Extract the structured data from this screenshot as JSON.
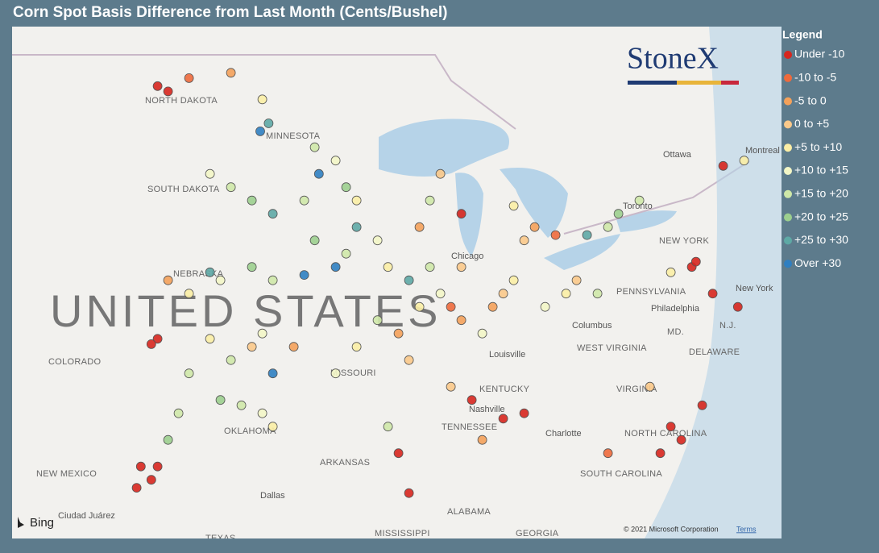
{
  "title": "Corn Spot Basis Difference from Last Month (Cents/Bushel)",
  "logo": "StoneX",
  "legend": {
    "title": "Legend",
    "items": [
      {
        "label": "Under -10",
        "color": "#d7261e"
      },
      {
        "label": "-10 to -5",
        "color": "#ee6a3c"
      },
      {
        "label": "-5 to 0",
        "color": "#f4a15a"
      },
      {
        "label": "0 to +5",
        "color": "#fbc98a"
      },
      {
        "label": "+5 to +10",
        "color": "#fbeea5"
      },
      {
        "label": "+10 to +15",
        "color": "#f3f6c6"
      },
      {
        "label": "+15 to +20",
        "color": "#cfe8a8"
      },
      {
        "label": "+20 to +25",
        "color": "#9ccf8e"
      },
      {
        "label": "+25 to +30",
        "color": "#5ea9a5"
      },
      {
        "label": "Over +30",
        "color": "#2f7fc1"
      }
    ]
  },
  "map_labels": [
    "UNITED STATES",
    "NORTH DAKOTA",
    "SOUTH DAKOTA",
    "MINNESOTA",
    "NEBRASKA",
    "COLORADO",
    "MISSOURI",
    "OKLAHOMA",
    "KENTUCKY",
    "TENNESSEE",
    "WEST VIRGINIA",
    "VIRGINIA",
    "NORTH CAROLINA",
    "SOUTH CAROLINA",
    "ARKANSAS",
    "ALABAMA",
    "MISSISSIPPI",
    "GEORGIA",
    "NEW MEXICO",
    "TEXAS",
    "PENNSYLVANIA",
    "NEW YORK",
    "DELAWARE",
    "MD.",
    "N.J.",
    "Chicago",
    "Columbus",
    "Louisville",
    "Nashville",
    "Charlotte",
    "Philadelphia",
    "Dallas",
    "Toronto",
    "Ottawa",
    "Montreal",
    "New York",
    "Ciudad Juárez"
  ],
  "attribution": {
    "bing": "Bing",
    "copyright": "© 2021 Microsoft Corporation",
    "terms": "Terms"
  },
  "points": [
    [
      -102.5,
      48.3,
      0
    ],
    [
      -102,
      48.1,
      0
    ],
    [
      -101,
      48.6,
      1
    ],
    [
      -99,
      48.8,
      2
    ],
    [
      -97.5,
      47.8,
      4
    ],
    [
      -97.2,
      46.9,
      8
    ],
    [
      -97.6,
      46.6,
      9
    ],
    [
      -95,
      46,
      6
    ],
    [
      -94,
      45.5,
      5
    ],
    [
      -93.5,
      44.5,
      7
    ],
    [
      -94.8,
      45,
      9
    ],
    [
      -95.5,
      44,
      6
    ],
    [
      -93,
      44,
      4
    ],
    [
      -98,
      44,
      7
    ],
    [
      -97,
      43.5,
      8
    ],
    [
      -99,
      44.5,
      6
    ],
    [
      -100,
      45,
      5
    ],
    [
      -93.5,
      42,
      6
    ],
    [
      -94,
      41.5,
      9
    ],
    [
      -95,
      42.5,
      7
    ],
    [
      -92,
      42.5,
      5
    ],
    [
      -91.5,
      41.5,
      4
    ],
    [
      -93,
      43,
      8
    ],
    [
      -95.5,
      41.2,
      9
    ],
    [
      -97,
      41,
      6
    ],
    [
      -98,
      41.5,
      7
    ],
    [
      -99.5,
      41,
      5
    ],
    [
      -101,
      40.5,
      4
    ],
    [
      -100,
      41.3,
      8
    ],
    [
      -102,
      41,
      2
    ],
    [
      -98,
      38.5,
      3
    ],
    [
      -97.5,
      39,
      5
    ],
    [
      -99,
      38,
      6
    ],
    [
      -96,
      38.5,
      2
    ],
    [
      -100,
      38.8,
      4
    ],
    [
      -97,
      37.5,
      9
    ],
    [
      -101,
      37.5,
      6
    ],
    [
      -102.5,
      38.8,
      0
    ],
    [
      -102.8,
      38.6,
      0
    ],
    [
      -97.5,
      36,
      5
    ],
    [
      -98.5,
      36.3,
      6
    ],
    [
      -99.5,
      36.5,
      7
    ],
    [
      -97,
      35.5,
      4
    ],
    [
      -102,
      35,
      7
    ],
    [
      -101.5,
      36,
      6
    ],
    [
      -102.5,
      34,
      0
    ],
    [
      -102.8,
      33.5,
      0
    ],
    [
      -93,
      38.5,
      4
    ],
    [
      -92,
      39.5,
      6
    ],
    [
      -91,
      39,
      2
    ],
    [
      -94,
      37.5,
      5
    ],
    [
      -90.5,
      38,
      3
    ],
    [
      -89,
      40.5,
      5
    ],
    [
      -88.5,
      40,
      1
    ],
    [
      -88,
      39.5,
      2
    ],
    [
      -90,
      40,
      4
    ],
    [
      -89.5,
      41.5,
      6
    ],
    [
      -90.5,
      41,
      8
    ],
    [
      -88,
      41.5,
      3
    ],
    [
      -86.5,
      40,
      2
    ],
    [
      -86,
      40.5,
      3
    ],
    [
      -85.5,
      41,
      4
    ],
    [
      -87,
      39,
      5
    ],
    [
      -83,
      40.5,
      4
    ],
    [
      -84,
      40,
      5
    ],
    [
      -82.5,
      41,
      3
    ],
    [
      -81.5,
      40.5,
      6
    ],
    [
      -84.5,
      43,
      2
    ],
    [
      -85,
      42.5,
      3
    ],
    [
      -83.5,
      42.7,
      1
    ],
    [
      -85.5,
      43.8,
      4
    ],
    [
      -81,
      43,
      6
    ],
    [
      -80.5,
      43.5,
      7
    ],
    [
      -82,
      42.7,
      8
    ],
    [
      -79.5,
      44,
      6
    ],
    [
      -75.5,
      45.3,
      0
    ],
    [
      -74.5,
      45.5,
      4
    ],
    [
      -89.5,
      44,
      6
    ],
    [
      -90,
      43,
      2
    ],
    [
      -88,
      43.5,
      0
    ],
    [
      -89,
      45,
      3
    ],
    [
      -77,
      41.5,
      0
    ],
    [
      -76.8,
      41.7,
      0
    ],
    [
      -76,
      40.5,
      0
    ],
    [
      -78,
      41.3,
      4
    ],
    [
      -74.8,
      40,
      0
    ],
    [
      -88.5,
      37,
      3
    ],
    [
      -87.5,
      36.5,
      0
    ],
    [
      -86,
      35.8,
      0
    ],
    [
      -87,
      35,
      2
    ],
    [
      -85,
      36,
      0
    ],
    [
      -91,
      34.5,
      0
    ],
    [
      -90.5,
      33,
      0
    ],
    [
      -91.5,
      35.5,
      6
    ],
    [
      -78,
      35.5,
      0
    ],
    [
      -77.5,
      35,
      0
    ],
    [
      -78.5,
      34.5,
      0
    ],
    [
      -76.5,
      36.3,
      0
    ],
    [
      -81,
      34.5,
      1
    ],
    [
      -79,
      37,
      3
    ],
    [
      -103.3,
      34,
      0
    ],
    [
      -103.5,
      33.2,
      0
    ]
  ]
}
